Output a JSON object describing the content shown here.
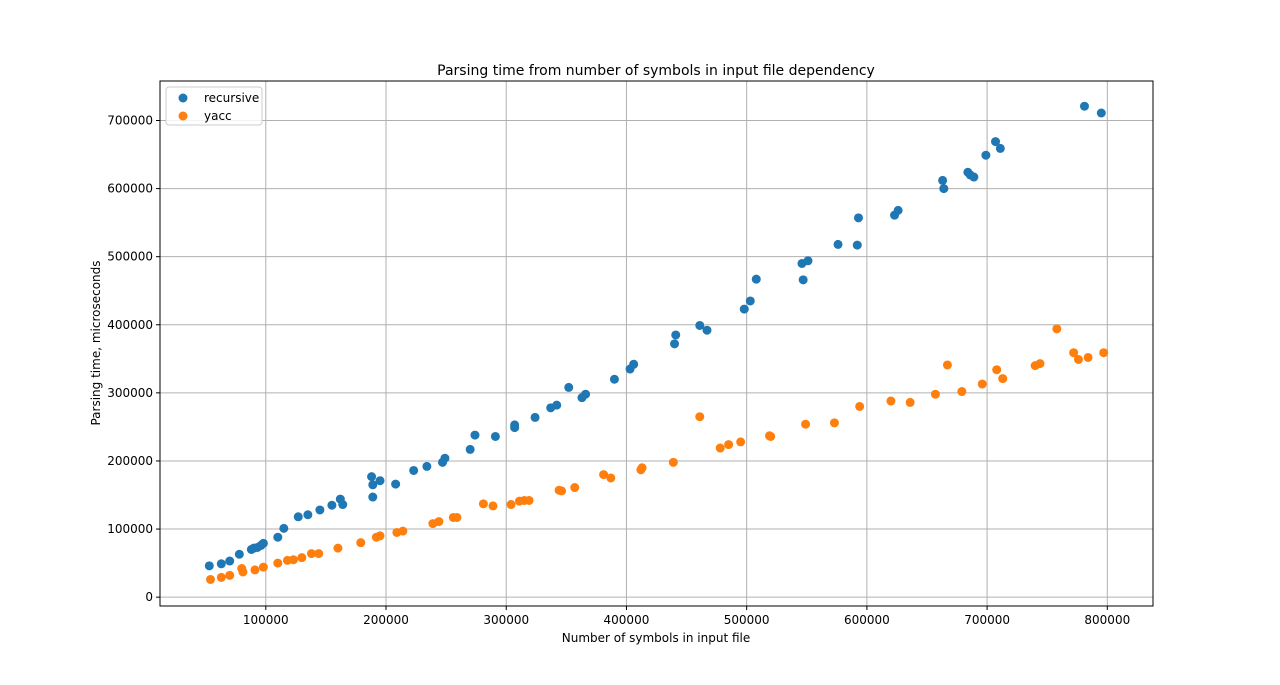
{
  "chart_data": {
    "type": "scatter",
    "title": "Parsing time from number of symbols in input file dependency",
    "xlabel": "Number of symbols in input file",
    "ylabel": "Parsing time, microseconds",
    "xlim": [
      12000,
      838000
    ],
    "ylim": [
      -13000,
      758000
    ],
    "xticks": [
      100000,
      200000,
      300000,
      400000,
      500000,
      600000,
      700000,
      800000
    ],
    "xtick_labels": [
      "100000",
      "200000",
      "300000",
      "400000",
      "500000",
      "600000",
      "700000",
      "800000"
    ],
    "yticks": [
      0,
      100000,
      200000,
      300000,
      400000,
      500000,
      600000,
      700000
    ],
    "ytick_labels": [
      "0",
      "100000",
      "200000",
      "300000",
      "400000",
      "500000",
      "600000",
      "700000"
    ],
    "grid": true,
    "legend_position": "top-left",
    "series": [
      {
        "name": "recursive",
        "color": "#1f77b4",
        "points": [
          [
            53000,
            46000
          ],
          [
            63000,
            49000
          ],
          [
            70000,
            53000
          ],
          [
            78000,
            63000
          ],
          [
            88000,
            70000
          ],
          [
            90000,
            72000
          ],
          [
            93000,
            73000
          ],
          [
            96000,
            76000
          ],
          [
            98000,
            79000
          ],
          [
            110000,
            88000
          ],
          [
            115000,
            101000
          ],
          [
            127000,
            118000
          ],
          [
            135000,
            121000
          ],
          [
            145000,
            128000
          ],
          [
            155000,
            135000
          ],
          [
            162000,
            144000
          ],
          [
            164000,
            136000
          ],
          [
            188000,
            177000
          ],
          [
            189000,
            165000
          ],
          [
            189000,
            147000
          ],
          [
            195000,
            171000
          ],
          [
            208000,
            166000
          ],
          [
            223000,
            186000
          ],
          [
            234000,
            192000
          ],
          [
            247000,
            198000
          ],
          [
            249000,
            204000
          ],
          [
            270000,
            217000
          ],
          [
            274000,
            238000
          ],
          [
            291000,
            236000
          ],
          [
            307000,
            249000
          ],
          [
            307000,
            253000
          ],
          [
            324000,
            264000
          ],
          [
            337000,
            278000
          ],
          [
            342000,
            282000
          ],
          [
            352000,
            308000
          ],
          [
            363000,
            293000
          ],
          [
            366000,
            298000
          ],
          [
            390000,
            320000
          ],
          [
            403000,
            335000
          ],
          [
            406000,
            342000
          ],
          [
            440000,
            372000
          ],
          [
            441000,
            385000
          ],
          [
            461000,
            399000
          ],
          [
            467000,
            392000
          ],
          [
            498000,
            423000
          ],
          [
            503000,
            435000
          ],
          [
            508000,
            467000
          ],
          [
            546000,
            490000
          ],
          [
            547000,
            466000
          ],
          [
            551000,
            494000
          ],
          [
            576000,
            518000
          ],
          [
            592000,
            517000
          ],
          [
            593000,
            557000
          ],
          [
            623000,
            561000
          ],
          [
            626000,
            568000
          ],
          [
            663000,
            612000
          ],
          [
            664000,
            600000
          ],
          [
            684000,
            624000
          ],
          [
            686000,
            620000
          ],
          [
            689000,
            617000
          ],
          [
            699000,
            649000
          ],
          [
            707000,
            669000
          ],
          [
            711000,
            659000
          ],
          [
            781000,
            721000
          ],
          [
            795000,
            711000
          ]
        ]
      },
      {
        "name": "yacc",
        "color": "#ff7f0e",
        "points": [
          [
            54000,
            26000
          ],
          [
            63000,
            29000
          ],
          [
            70000,
            32000
          ],
          [
            80000,
            42000
          ],
          [
            81000,
            37000
          ],
          [
            91000,
            40000
          ],
          [
            98000,
            44000
          ],
          [
            110000,
            50000
          ],
          [
            118000,
            54000
          ],
          [
            123000,
            55000
          ],
          [
            130000,
            58000
          ],
          [
            138000,
            64000
          ],
          [
            144000,
            64000
          ],
          [
            160000,
            72000
          ],
          [
            179000,
            80000
          ],
          [
            192000,
            88000
          ],
          [
            195000,
            90000
          ],
          [
            209000,
            95000
          ],
          [
            214000,
            97000
          ],
          [
            239000,
            108000
          ],
          [
            244000,
            111000
          ],
          [
            256000,
            117000
          ],
          [
            259000,
            117000
          ],
          [
            281000,
            137000
          ],
          [
            289000,
            134000
          ],
          [
            304000,
            136000
          ],
          [
            311000,
            141000
          ],
          [
            315000,
            142000
          ],
          [
            319000,
            142000
          ],
          [
            344000,
            157000
          ],
          [
            346000,
            156000
          ],
          [
            357000,
            161000
          ],
          [
            381000,
            180000
          ],
          [
            387000,
            175000
          ],
          [
            412000,
            187000
          ],
          [
            413000,
            190000
          ],
          [
            439000,
            198000
          ],
          [
            461000,
            265000
          ],
          [
            478000,
            219000
          ],
          [
            485000,
            224000
          ],
          [
            495000,
            228000
          ],
          [
            519000,
            237000
          ],
          [
            520000,
            236000
          ],
          [
            549000,
            254000
          ],
          [
            573000,
            256000
          ],
          [
            594000,
            280000
          ],
          [
            620000,
            288000
          ],
          [
            636000,
            286000
          ],
          [
            657000,
            298000
          ],
          [
            667000,
            341000
          ],
          [
            679000,
            302000
          ],
          [
            696000,
            313000
          ],
          [
            708000,
            334000
          ],
          [
            713000,
            321000
          ],
          [
            740000,
            340000
          ],
          [
            744000,
            343000
          ],
          [
            758000,
            394000
          ],
          [
            772000,
            359000
          ],
          [
            776000,
            349000
          ],
          [
            784000,
            352000
          ],
          [
            797000,
            359000
          ]
        ]
      }
    ]
  }
}
